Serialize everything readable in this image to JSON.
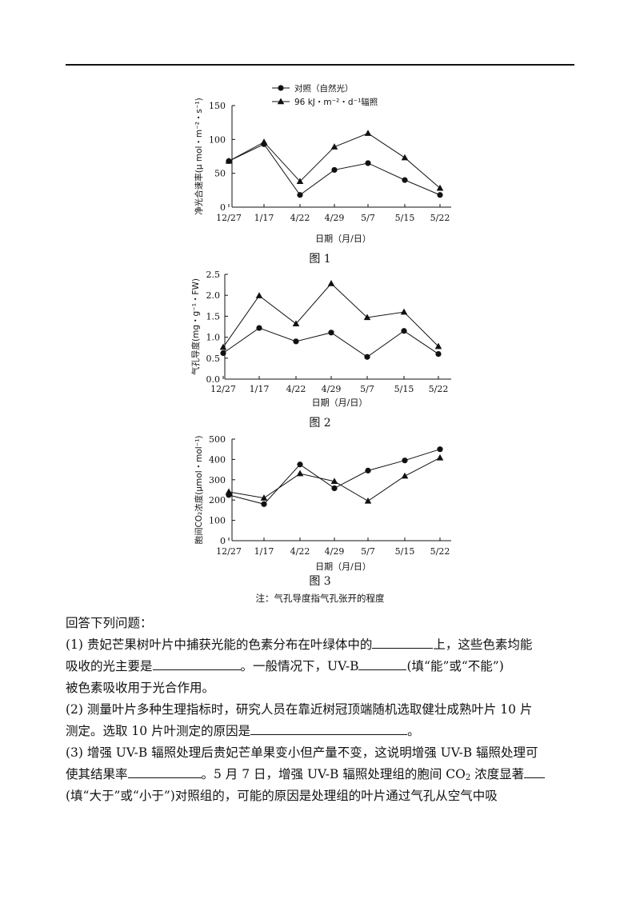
{
  "chart_data": [
    {
      "type": "line",
      "title": "图 1",
      "xlabel": "日期（月/日）",
      "ylabel": "净光合速率(μ mol・m⁻²・s⁻¹)",
      "categories": [
        "12/27",
        "1/17",
        "4/22",
        "4/29",
        "5/7",
        "5/15",
        "5/22"
      ],
      "ylim": [
        0,
        150
      ],
      "yticks": [
        "0",
        "50",
        "100",
        "150"
      ],
      "legend_position": "top",
      "series": [
        {
          "name": "对照（自然光）",
          "marker": "circle",
          "values": [
            68,
            93,
            18,
            55,
            65,
            40,
            18
          ]
        },
        {
          "name": "96 kJ・m⁻²・d⁻¹辐照",
          "marker": "triangle",
          "values": [
            68,
            96,
            38,
            89,
            109,
            73,
            28
          ]
        }
      ]
    },
    {
      "type": "line",
      "title": "图 2",
      "xlabel": "日期（月/日）",
      "ylabel": "气孔导度(mg・g⁻¹・FW)",
      "categories": [
        "12/27",
        "1/17",
        "4/22",
        "4/29",
        "5/7",
        "5/15",
        "5/22"
      ],
      "ylim": [
        0,
        2.5
      ],
      "yticks": [
        "0.0",
        "0.5",
        "1.0",
        "1.5",
        "2.0",
        "2.5"
      ],
      "series": [
        {
          "name": "对照（自然光）",
          "marker": "circle",
          "values": [
            0.62,
            1.22,
            0.9,
            1.11,
            0.53,
            1.15,
            0.6
          ]
        },
        {
          "name": "96 kJ・m⁻²・d⁻¹辐照",
          "marker": "triangle",
          "values": [
            0.76,
            1.99,
            1.32,
            2.28,
            1.47,
            1.6,
            0.78
          ]
        }
      ]
    },
    {
      "type": "line",
      "title": "图 3",
      "xlabel": "日期（月/日）",
      "ylabel": "胞间CO₂浓度(μmol・mol⁻¹)",
      "categories": [
        "12/27",
        "1/17",
        "4/22",
        "4/29",
        "5/7",
        "5/15",
        "5/22"
      ],
      "ylim": [
        0,
        500
      ],
      "yticks": [
        "0",
        "100",
        "200",
        "300",
        "400",
        "500"
      ],
      "series": [
        {
          "name": "对照（自然光）",
          "marker": "circle",
          "values": [
            225,
            180,
            375,
            258,
            345,
            395,
            450
          ]
        },
        {
          "name": "96 kJ・m⁻²・d⁻¹辐照",
          "marker": "triangle",
          "values": [
            240,
            210,
            330,
            292,
            195,
            318,
            408
          ]
        }
      ]
    }
  ],
  "note": "注：气孔导度指气孔张开的程度",
  "questions": {
    "intro": "回答下列问题：",
    "q1_a": "(1) 贵妃芒果树叶片中捕获光能的色素分布在叶绿体中的",
    "q1_b": "上，这些色素均能",
    "q1_c": "吸收的光主要是",
    "q1_d": "。一般情况下，UV-B",
    "q1_e": "(填“能”或“不能”)",
    "q1_f": "被色素吸收用于光合作用。",
    "q2_a": "(2) 测量叶片多种生理指标时，研究人员在靠近树冠顶端随机选取健壮成熟叶片 10 片",
    "q2_b": "测定。选取 10 片叶测定的原因是",
    "q2_c": "。",
    "q3_a": "(3) 增强 UV-B 辐照处理后贵妃芒单果变小但产量不变，这说明增强 UV-B 辐照处理可",
    "q3_b": "使其结果率",
    "q3_c": "。5 月 7 日，增强 UV-B 辐照处理组的胞间 CO",
    "q3_sub": "2",
    "q3_d": " 浓度显著",
    "q3_e": "(填“大于”或“小于”)对照组的，可能的原因是处理组的叶片通过气孔从空气中吸"
  }
}
